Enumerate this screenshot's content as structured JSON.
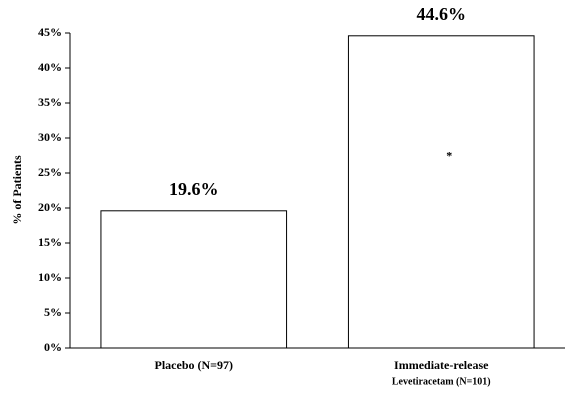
{
  "chart_data": {
    "type": "bar",
    "y_label": "% of Patients",
    "categories": [
      [
        "Placebo (N=97)"
      ],
      [
        "Immediate-release",
        "Levetiracetam (N=101)"
      ]
    ],
    "values": [
      19.6,
      44.6
    ],
    "value_labels": [
      "19.6%",
      "44.6%"
    ],
    "annotations": [
      null,
      "*"
    ],
    "color": "#ffffff",
    "edge_color": "#000000",
    "ylim": [
      0,
      45
    ],
    "yticks": [
      {
        "value": 0,
        "label": "0%"
      },
      {
        "value": 5,
        "label": "5%"
      },
      {
        "value": 10,
        "label": "10%"
      },
      {
        "value": 15,
        "label": "15%"
      },
      {
        "value": 20,
        "label": "20%"
      },
      {
        "value": 25,
        "label": "25%"
      },
      {
        "value": 30,
        "label": "30%"
      },
      {
        "value": 35,
        "label": "35%"
      },
      {
        "value": 40,
        "label": "40%"
      },
      {
        "value": 45,
        "label": "45%"
      }
    ],
    "grid": false
  }
}
